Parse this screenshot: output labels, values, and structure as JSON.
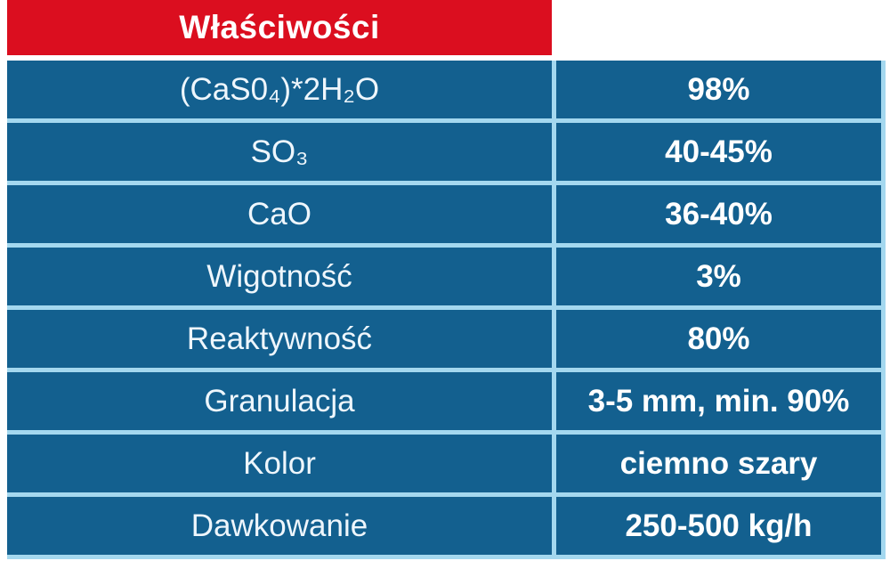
{
  "colors": {
    "page_bg": "#ffffff",
    "header_bg": "#db0e1f",
    "row_bg": "#13608f",
    "divider": "#a4d8ef",
    "header_text": "#ffffff",
    "label_text": "#eef6fc",
    "value_text": "#ffffff"
  },
  "table": {
    "header_label": "Właściwości",
    "rows": [
      {
        "property": "(CaS0₄)*2H₂O",
        "value": "98%"
      },
      {
        "property": "SO₃",
        "value": "40-45%"
      },
      {
        "property": "CaO",
        "value": "36-40%"
      },
      {
        "property": "Wigotność",
        "value": "3%"
      },
      {
        "property": "Reaktywność",
        "value": "80%"
      },
      {
        "property": "Granulacja",
        "value": "3-5 mm, min. 90%"
      },
      {
        "property": "Kolor",
        "value": "ciemno szary"
      },
      {
        "property": "Dawkowanie",
        "value": "250-500 kg/h"
      }
    ]
  }
}
